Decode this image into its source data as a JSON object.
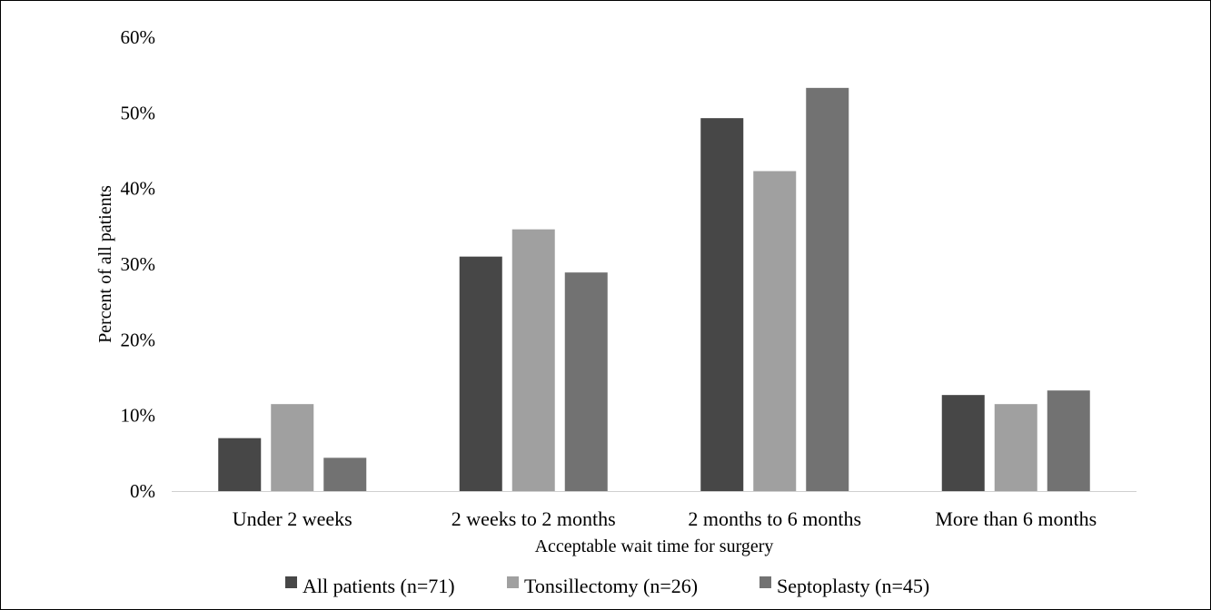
{
  "chart_data": {
    "type": "bar",
    "title": "",
    "xlabel": "Acceptable wait time for surgery",
    "ylabel": "Percent of all patients",
    "ylim": [
      0,
      60
    ],
    "y_ticks": [
      "0%",
      "10%",
      "20%",
      "30%",
      "40%",
      "50%",
      "60%"
    ],
    "y_tick_values": [
      0,
      10,
      20,
      30,
      40,
      50,
      60
    ],
    "categories": [
      "Under 2 weeks",
      "2 weeks to 2 months",
      "2 months to 6 months",
      "More than 6 months"
    ],
    "series": [
      {
        "name": "All patients (n=71)",
        "color": "#474747",
        "values": [
          7.0,
          31.0,
          49.3,
          12.7
        ]
      },
      {
        "name": "Tonsillectomy (n=26)",
        "color": "#a0a0a0",
        "values": [
          11.5,
          34.6,
          42.3,
          11.5
        ]
      },
      {
        "name": "Septoplasty (n=45)",
        "color": "#727272",
        "values": [
          4.4,
          28.9,
          53.3,
          13.3
        ]
      }
    ],
    "grid": false,
    "legend_position": "bottom"
  }
}
